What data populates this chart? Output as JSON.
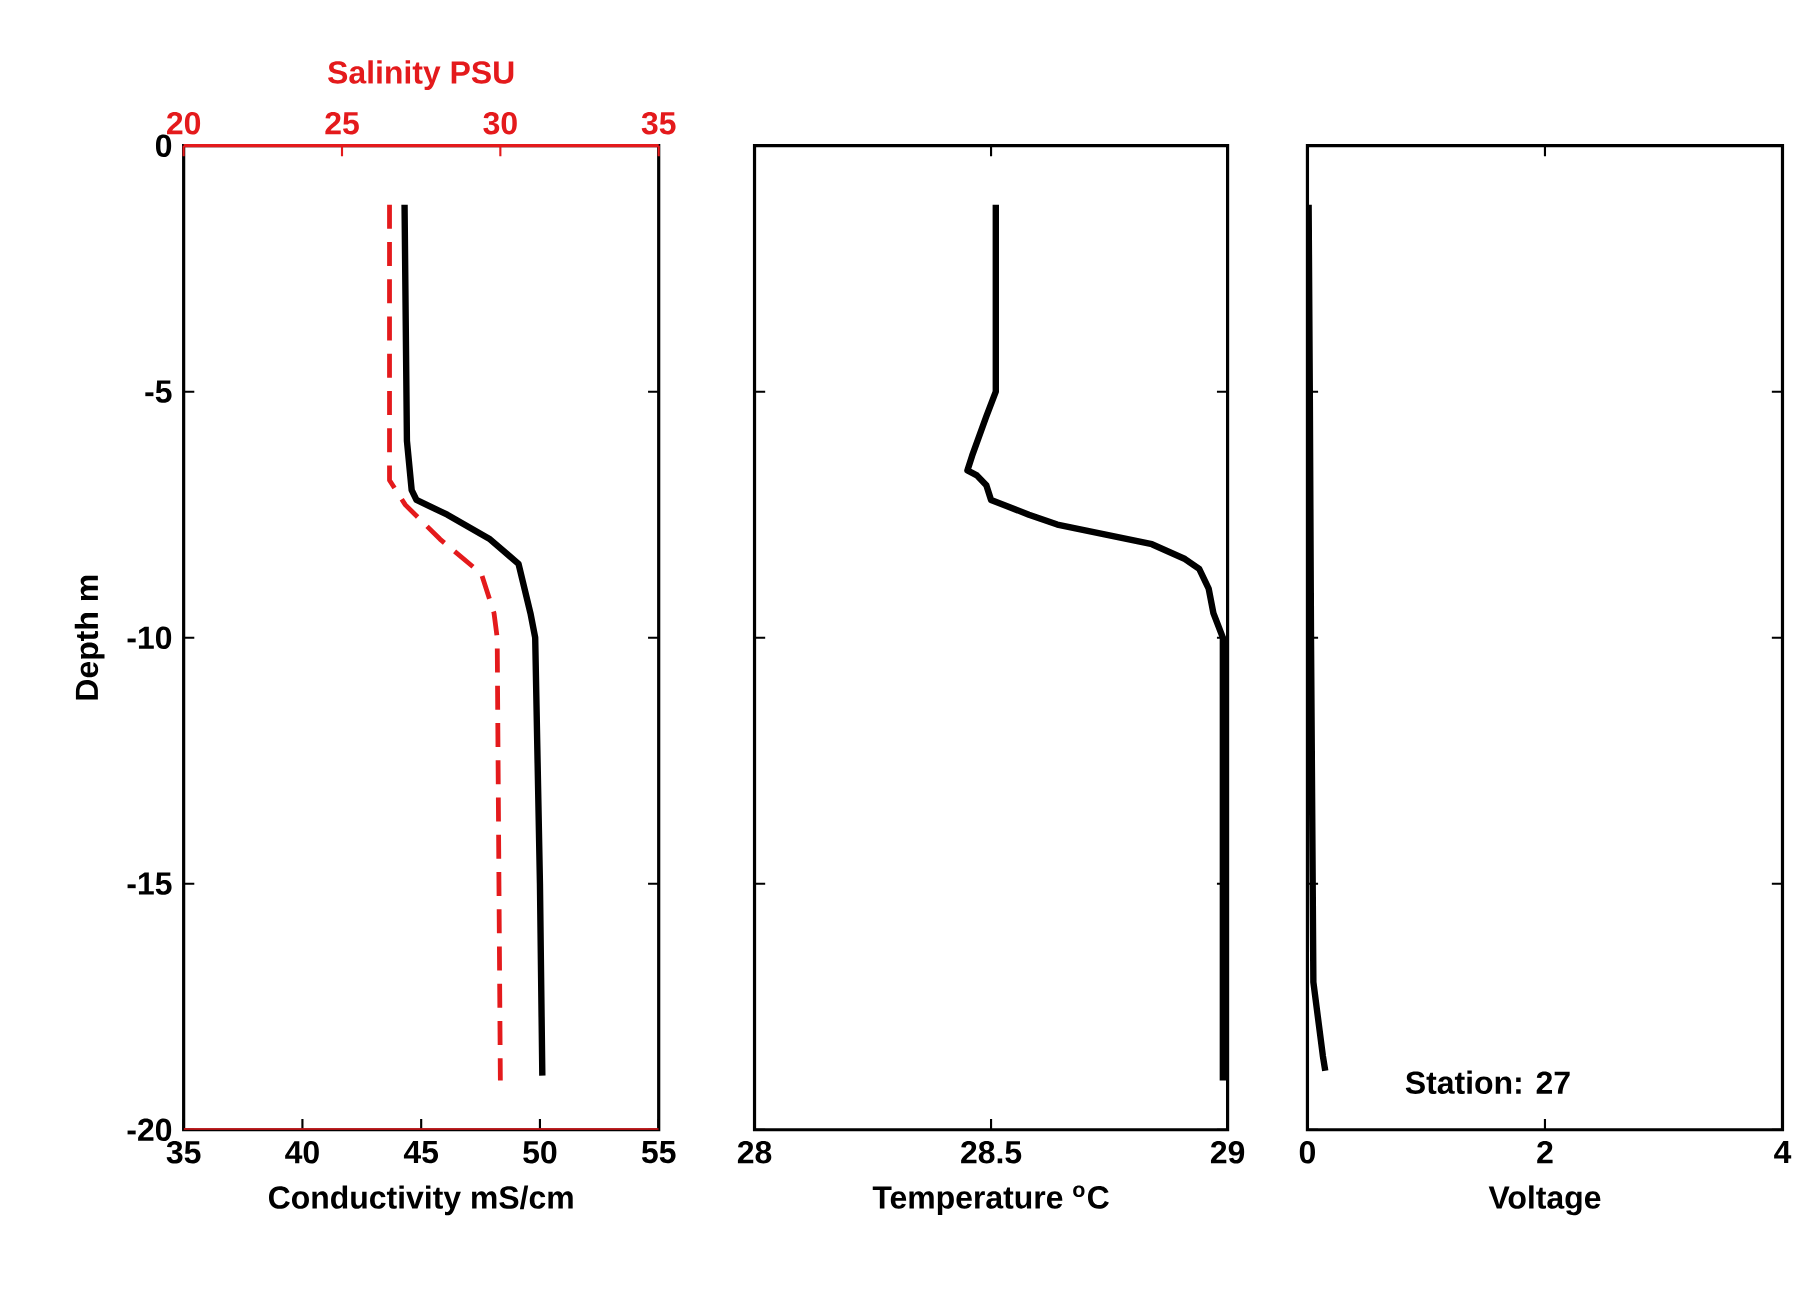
{
  "chart_data": [
    {
      "type": "line",
      "xlabel": "Conductivity mS/cm",
      "ylabel": "Depth m",
      "x2label": "Salinity PSU",
      "xlim": [
        35,
        55
      ],
      "xticks": [
        35,
        40,
        45,
        50,
        55
      ],
      "x2lim": [
        20,
        35
      ],
      "x2ticks": [
        20,
        25,
        30,
        35
      ],
      "ylim": [
        -20,
        0
      ],
      "yticks": [
        -20,
        -15,
        -10,
        -5,
        0
      ],
      "series": [
        {
          "color": "#000000",
          "line_style": "solid",
          "x": [
            44.3,
            44.4,
            44.6,
            44.8,
            46.1,
            47.9,
            49.1,
            49.6,
            49.8,
            50.0,
            50.1
          ],
          "values": [
            -1.2,
            -6,
            -7,
            -7.2,
            -7.5,
            -8,
            -8.5,
            -9.5,
            -10,
            -15,
            -18.9
          ]
        },
        {
          "color": "#e41a1c",
          "line_style": "dashed",
          "axis": "x2",
          "x": [
            26.5,
            26.5,
            27.0,
            28.1,
            29.4,
            29.8,
            29.9,
            30.0
          ],
          "values": [
            -1.2,
            -6.8,
            -7.3,
            -8,
            -8.7,
            -9.5,
            -10,
            -19
          ]
        }
      ]
    },
    {
      "type": "line",
      "xlabel": "Temperature $^{o}$C",
      "xlim": [
        28,
        29
      ],
      "xticks": [
        28,
        28.5,
        29
      ],
      "ylim": [
        -20,
        0
      ],
      "yticks": [
        -20,
        -15,
        -10,
        -5,
        0
      ],
      "tick_labels": "x",
      "series": [
        {
          "color": "#000000",
          "line_style": "solid",
          "x": [
            28.51,
            28.51,
            28.49,
            28.46,
            28.45,
            28.47,
            28.49,
            28.5,
            28.58,
            28.64,
            28.74,
            28.84,
            28.91,
            28.94,
            28.96,
            28.97,
            28.99,
            28.99
          ],
          "values": [
            -1.2,
            -5,
            -5.5,
            -6.3,
            -6.6,
            -6.7,
            -6.9,
            -7.2,
            -7.5,
            -7.7,
            -7.9,
            -8.1,
            -8.4,
            -8.6,
            -9,
            -9.5,
            -10,
            -19
          ]
        }
      ]
    },
    {
      "type": "line",
      "xlabel": "Voltage",
      "xlim": [
        0,
        4
      ],
      "xticks": [
        0,
        2,
        4
      ],
      "ylim": [
        -20,
        0
      ],
      "yticks": [
        -20,
        -15,
        -10,
        -5,
        0
      ],
      "tick_labels": "x",
      "annotations": [
        "Station: 27"
      ],
      "series": [
        {
          "color": "#000000",
          "line_style": "solid",
          "x": [
            0.01,
            0.02,
            0.03,
            0.05,
            0.13,
            0.15
          ],
          "values": [
            -1.2,
            -5,
            -10,
            -17,
            -18.5,
            -18.8
          ]
        }
      ]
    }
  ]
}
